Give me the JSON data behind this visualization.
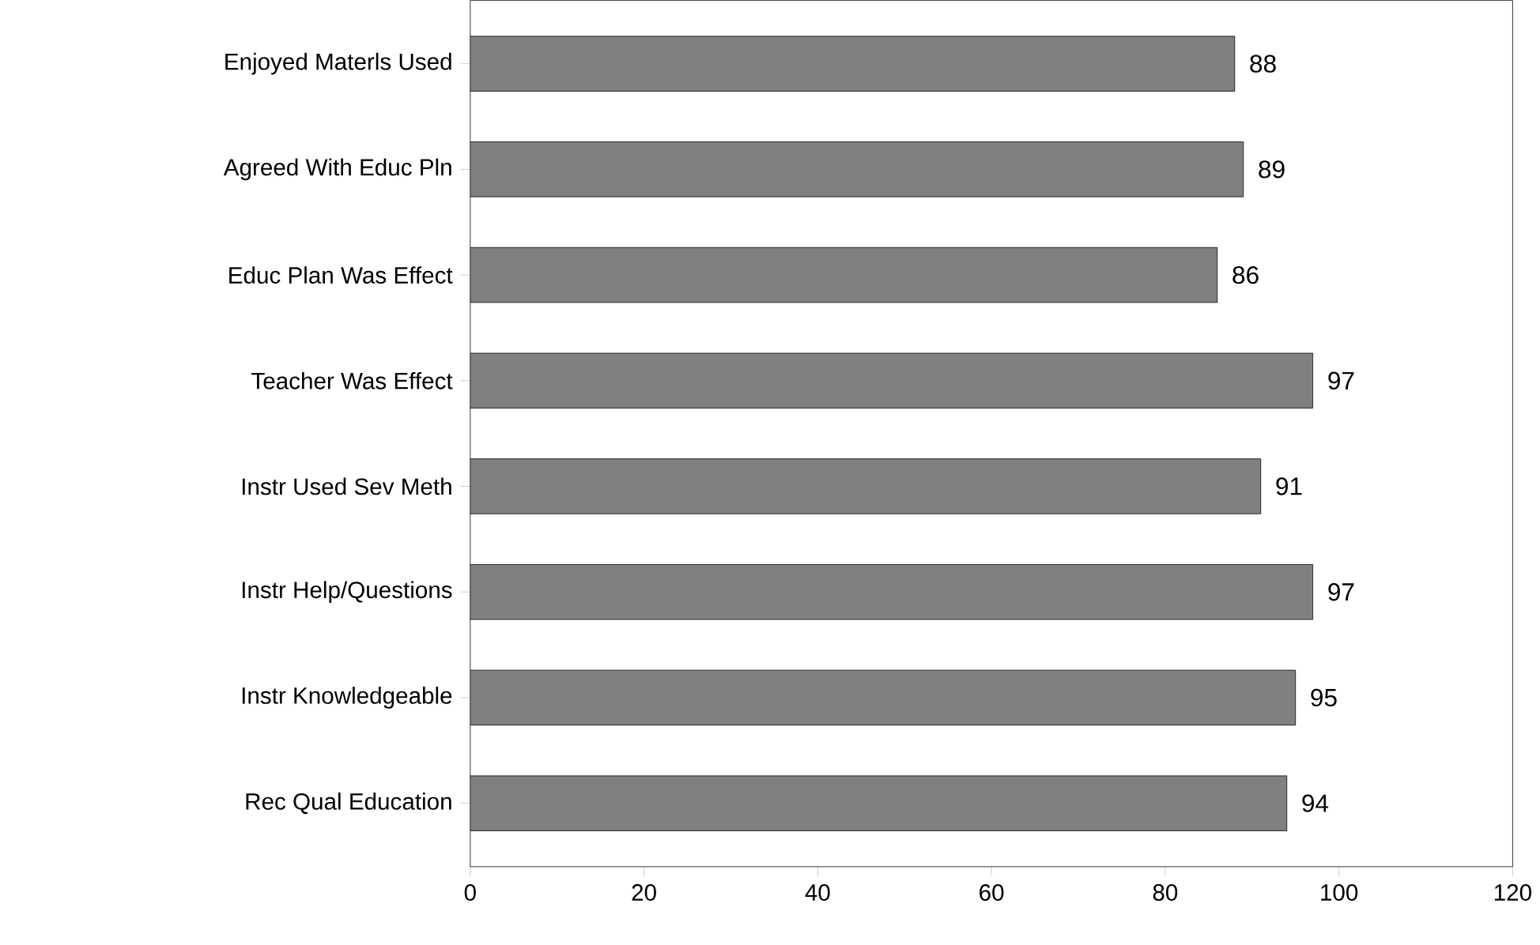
{
  "chart_data": {
    "type": "bar",
    "orientation": "horizontal",
    "categories": [
      "Enjoyed Materls Used",
      "Agreed With Educ Pln",
      "Educ Plan Was Effect",
      "Teacher Was Effect",
      "Instr Used Sev Meth",
      "Instr Help/Questions",
      "Instr Knowledgeable",
      "Rec Qual Education"
    ],
    "values": [
      88,
      89,
      86,
      97,
      91,
      97,
      95,
      94
    ],
    "color": "#808080",
    "xlim": [
      0,
      120
    ],
    "xticks": [
      0,
      20,
      40,
      60,
      80,
      100,
      120
    ],
    "data_labels": true
  }
}
